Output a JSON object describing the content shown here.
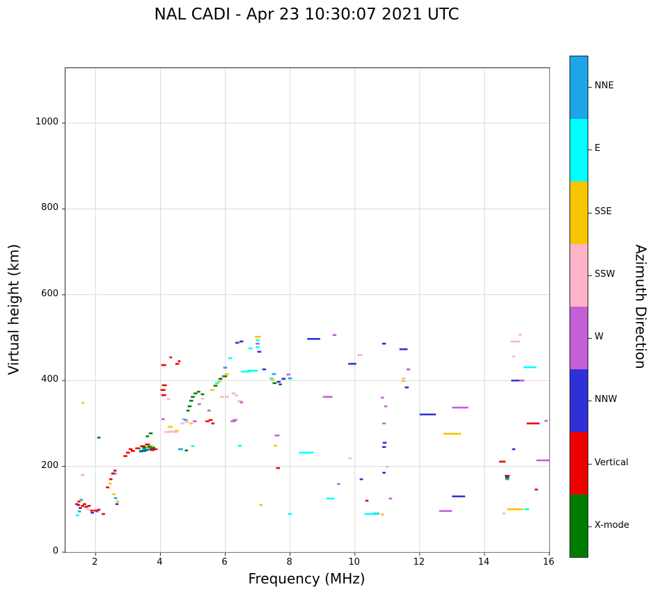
{
  "title": "NAL CADI - Apr 23 10:30:07 2021 UTC",
  "axes": {
    "x": {
      "label": "Frequency (MHz)",
      "min": 1.07,
      "max": 16,
      "ticks": [
        2,
        4,
        6,
        8,
        10,
        12,
        14,
        16
      ]
    },
    "y": {
      "label": "Virtual height (km)",
      "min": 0,
      "max": 1128,
      "ticks": [
        0,
        200,
        400,
        600,
        800,
        1000
      ]
    }
  },
  "colorbar": {
    "label": "Azimuth Direction",
    "categories": [
      {
        "name": "NNE",
        "color": "#1ea5e8"
      },
      {
        "name": "E",
        "color": "#00ffff"
      },
      {
        "name": "SSE",
        "color": "#f6c500"
      },
      {
        "name": "SSW",
        "color": "#ffb3c6"
      },
      {
        "name": "W",
        "color": "#c45fd6"
      },
      {
        "name": "NNW",
        "color": "#3030d8"
      },
      {
        "name": "Vertical",
        "color": "#ee0000"
      },
      {
        "name": "X-mode",
        "color": "#007d00"
      }
    ]
  },
  "chart_data": {
    "type": "scatter",
    "title": "NAL CADI - Apr 23 10:30:07 2021 UTC",
    "xlabel": "Frequency (MHz)",
    "ylabel": "Virtual height (km)",
    "xlim": [
      1.07,
      16
    ],
    "ylim": [
      0,
      1128
    ],
    "grid": true,
    "legend_position": "colorbar-right",
    "marker": "horizontal-dash",
    "point_format": "[freq_MHz, virtual_height_km, dash_width_MHz]",
    "series": [
      {
        "name": "NNE",
        "color": "#1ea5e8",
        "points": [
          [
            1.5,
            95,
            0.1
          ],
          [
            1.56,
            122,
            0.1
          ],
          [
            2.05,
            95,
            0.1
          ],
          [
            2.62,
            126,
            0.1
          ],
          [
            3.5,
            240,
            0.12
          ],
          [
            3.68,
            244,
            0.12
          ],
          [
            4.62,
            240,
            0.15
          ],
          [
            6.0,
            430,
            0.12
          ],
          [
            7.5,
            415,
            0.12
          ],
          [
            8.0,
            405,
            0.12
          ],
          [
            10.65,
            90,
            0.2
          ],
          [
            14.7,
            170,
            0.12
          ]
        ]
      },
      {
        "name": "E",
        "color": "#00ffff",
        "points": [
          [
            1.44,
            86,
            0.1
          ],
          [
            1.68,
            105,
            0.1
          ],
          [
            2.55,
            185,
            0.1
          ],
          [
            3.42,
            238,
            0.12
          ],
          [
            3.62,
            240,
            0.12
          ],
          [
            4.72,
            310,
            0.1
          ],
          [
            5.0,
            247,
            0.1
          ],
          [
            5.75,
            394,
            0.12
          ],
          [
            6.15,
            452,
            0.12
          ],
          [
            6.45,
            248,
            0.12
          ],
          [
            6.63,
            421,
            0.3
          ],
          [
            6.85,
            423,
            0.3
          ],
          [
            6.78,
            475,
            0.12
          ],
          [
            7.0,
            494,
            0.12
          ],
          [
            7.0,
            478,
            0.12
          ],
          [
            7.42,
            405,
            0.12
          ],
          [
            8.0,
            89,
            0.12
          ],
          [
            8.5,
            232,
            0.45
          ],
          [
            9.24,
            125,
            0.25
          ],
          [
            10.5,
            89,
            0.4
          ],
          [
            15.3,
            100,
            0.15
          ],
          [
            15.4,
            431,
            0.4
          ]
        ]
      },
      {
        "name": "SSE",
        "color": "#f6c500",
        "points": [
          [
            1.52,
            118,
            0.1
          ],
          [
            1.61,
            348,
            0.08
          ],
          [
            2.45,
            160,
            0.1
          ],
          [
            2.57,
            135,
            0.1
          ],
          [
            2.68,
            118,
            0.1
          ],
          [
            3.55,
            245,
            0.12
          ],
          [
            3.75,
            247,
            0.12
          ],
          [
            4.3,
            292,
            0.15
          ],
          [
            4.5,
            283,
            0.12
          ],
          [
            4.95,
            300,
            0.1
          ],
          [
            5.6,
            378,
            0.12
          ],
          [
            5.82,
            398,
            0.12
          ],
          [
            6.05,
            415,
            0.12
          ],
          [
            7.0,
            502,
            0.18
          ],
          [
            7.1,
            110,
            0.1
          ],
          [
            7.46,
            402,
            0.12
          ],
          [
            7.55,
            248,
            0.1
          ],
          [
            10.85,
            88,
            0.1
          ],
          [
            11.5,
            399,
            0.12
          ],
          [
            13.0,
            276,
            0.55
          ],
          [
            14.95,
            100,
            0.5
          ]
        ]
      },
      {
        "name": "SSW",
        "color": "#ffb3c6",
        "points": [
          [
            1.6,
            180,
            0.12
          ],
          [
            1.75,
            100,
            0.1
          ],
          [
            4.2,
            280,
            0.15
          ],
          [
            4.32,
            281,
            0.15
          ],
          [
            4.45,
            280,
            0.15
          ],
          [
            4.25,
            357,
            0.1
          ],
          [
            4.68,
            300,
            0.12
          ],
          [
            4.82,
            303,
            0.12
          ],
          [
            5.3,
            358,
            0.1
          ],
          [
            5.9,
            362,
            0.12
          ],
          [
            6.05,
            362,
            0.12
          ],
          [
            6.26,
            370,
            0.12
          ],
          [
            6.35,
            365,
            0.1
          ],
          [
            6.45,
            352,
            0.15
          ],
          [
            9.85,
            219,
            0.1
          ],
          [
            10.15,
            459,
            0.15
          ],
          [
            11.0,
            199,
            0.1
          ],
          [
            11.5,
            405,
            0.12
          ],
          [
            14.6,
            90,
            0.1
          ],
          [
            14.9,
            456,
            0.1
          ],
          [
            14.95,
            491,
            0.3
          ],
          [
            15.1,
            507,
            0.1
          ]
        ]
      },
      {
        "name": "W",
        "color": "#c45fd6",
        "points": [
          [
            2.6,
            183,
            0.1
          ],
          [
            4.08,
            310,
            0.1
          ],
          [
            4.78,
            308,
            0.12
          ],
          [
            5.06,
            305,
            0.12
          ],
          [
            5.2,
            345,
            0.1
          ],
          [
            5.5,
            330,
            0.1
          ],
          [
            5.95,
            410,
            0.12
          ],
          [
            6.24,
            305,
            0.15
          ],
          [
            6.3,
            308,
            0.15
          ],
          [
            6.5,
            349,
            0.1
          ],
          [
            7.0,
            486,
            0.12
          ],
          [
            7.6,
            272,
            0.15
          ],
          [
            7.95,
            414,
            0.12
          ],
          [
            9.16,
            362,
            0.3
          ],
          [
            9.37,
            506,
            0.12
          ],
          [
            9.5,
            159,
            0.1
          ],
          [
            10.9,
            300,
            0.1
          ],
          [
            10.95,
            340,
            0.1
          ],
          [
            10.85,
            360,
            0.1
          ],
          [
            11.1,
            125,
            0.1
          ],
          [
            11.65,
            426,
            0.12
          ],
          [
            12.8,
            96,
            0.4
          ],
          [
            13.25,
            337,
            0.5
          ],
          [
            15.15,
            400,
            0.15
          ],
          [
            15.8,
            214,
            0.4
          ],
          [
            15.9,
            306,
            0.1
          ]
        ]
      },
      {
        "name": "NNW",
        "color": "#3030d8",
        "points": [
          [
            1.47,
            110,
            0.1
          ],
          [
            1.9,
            92,
            0.1
          ],
          [
            2.66,
            112,
            0.1
          ],
          [
            3.5,
            236,
            0.12
          ],
          [
            3.72,
            240,
            0.12
          ],
          [
            6.37,
            488,
            0.12
          ],
          [
            6.5,
            491,
            0.12
          ],
          [
            7.05,
            467,
            0.12
          ],
          [
            7.2,
            426,
            0.12
          ],
          [
            7.65,
            397,
            0.12
          ],
          [
            7.8,
            404,
            0.12
          ],
          [
            8.73,
            497,
            0.4
          ],
          [
            9.92,
            439,
            0.25
          ],
          [
            10.2,
            170,
            0.1
          ],
          [
            10.9,
            185,
            0.1
          ],
          [
            10.9,
            245,
            0.12
          ],
          [
            10.92,
            255,
            0.12
          ],
          [
            10.9,
            486,
            0.12
          ],
          [
            11.5,
            473,
            0.25
          ],
          [
            11.6,
            384,
            0.12
          ],
          [
            12.25,
            321,
            0.5
          ],
          [
            13.2,
            130,
            0.4
          ],
          [
            14.7,
            176,
            0.12
          ],
          [
            14.9,
            240,
            0.1
          ],
          [
            14.95,
            400,
            0.25
          ]
        ]
      },
      {
        "name": "Vertical",
        "color": "#ee0000",
        "points": [
          [
            1.42,
            112,
            0.1
          ],
          [
            1.48,
            118,
            0.08
          ],
          [
            1.53,
            103,
            0.1
          ],
          [
            1.6,
            108,
            0.1
          ],
          [
            1.66,
            112,
            0.1
          ],
          [
            1.72,
            106,
            0.1
          ],
          [
            1.8,
            108,
            0.1
          ],
          [
            1.88,
            97,
            0.1
          ],
          [
            2.0,
            97,
            0.12
          ],
          [
            2.1,
            99,
            0.1
          ],
          [
            2.24,
            89,
            0.1
          ],
          [
            2.37,
            151,
            0.1
          ],
          [
            2.47,
            170,
            0.1
          ],
          [
            2.53,
            183,
            0.1
          ],
          [
            2.6,
            190,
            0.1
          ],
          [
            2.92,
            224,
            0.12
          ],
          [
            3.0,
            232,
            0.12
          ],
          [
            3.08,
            240,
            0.12
          ],
          [
            3.15,
            236,
            0.12
          ],
          [
            3.3,
            242,
            0.15
          ],
          [
            3.45,
            247,
            0.15
          ],
          [
            3.6,
            251,
            0.15
          ],
          [
            3.75,
            238,
            0.15
          ],
          [
            3.85,
            240,
            0.12
          ],
          [
            4.08,
            378,
            0.15
          ],
          [
            4.1,
            366,
            0.15
          ],
          [
            4.12,
            389,
            0.15
          ],
          [
            4.1,
            436,
            0.15
          ],
          [
            4.32,
            454,
            0.08
          ],
          [
            4.52,
            439,
            0.12
          ],
          [
            4.58,
            445,
            0.08
          ],
          [
            5.45,
            305,
            0.12
          ],
          [
            5.55,
            308,
            0.12
          ],
          [
            5.62,
            300,
            0.1
          ],
          [
            7.63,
            196,
            0.12
          ],
          [
            10.37,
            120,
            0.1
          ],
          [
            14.55,
            211,
            0.2
          ],
          [
            14.7,
            178,
            0.15
          ],
          [
            15.5,
            300,
            0.4
          ],
          [
            15.6,
            146,
            0.1
          ]
        ]
      },
      {
        "name": "X-mode",
        "color": "#007d00",
        "points": [
          [
            2.1,
            267,
            0.1
          ],
          [
            3.4,
            235,
            0.12
          ],
          [
            3.5,
            244,
            0.12
          ],
          [
            3.58,
            238,
            0.12
          ],
          [
            3.66,
            246,
            0.12
          ],
          [
            3.78,
            243,
            0.12
          ],
          [
            3.7,
            277,
            0.12
          ],
          [
            3.6,
            270,
            0.1
          ],
          [
            4.8,
            237,
            0.1
          ],
          [
            4.85,
            330,
            0.1
          ],
          [
            4.9,
            340,
            0.12
          ],
          [
            4.95,
            353,
            0.12
          ],
          [
            5.0,
            362,
            0.12
          ],
          [
            5.08,
            370,
            0.12
          ],
          [
            5.18,
            374,
            0.1
          ],
          [
            5.3,
            368,
            0.1
          ],
          [
            5.7,
            388,
            0.12
          ],
          [
            5.85,
            404,
            0.12
          ],
          [
            6.0,
            410,
            0.12
          ],
          [
            7.52,
            394,
            0.12
          ],
          [
            7.7,
            391,
            0.1
          ],
          [
            14.7,
            174,
            0.12
          ]
        ]
      }
    ]
  }
}
